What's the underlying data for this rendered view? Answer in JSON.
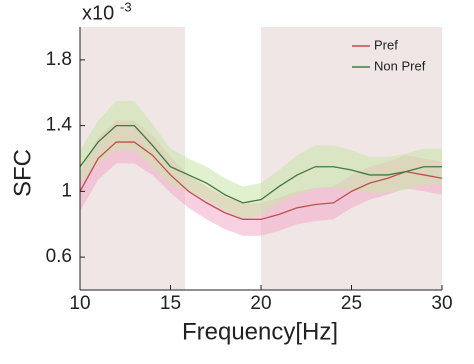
{
  "chart_data": {
    "type": "line",
    "x_label": "Frequency[Hz]",
    "y_label": "SFC",
    "y_scale_label": {
      "base": "x10",
      "exponent": "-3"
    },
    "x": [
      10,
      11,
      12,
      13,
      14,
      15,
      16,
      17,
      18,
      19,
      20,
      21,
      22,
      23,
      24,
      25,
      26,
      27,
      28,
      29,
      30
    ],
    "series": [
      {
        "name": "Pref",
        "color": "#c0504d",
        "band_color": "#f2a9c9",
        "values": [
          1.0,
          1.2,
          1.3,
          1.3,
          1.22,
          1.1,
          1.0,
          0.93,
          0.87,
          0.83,
          0.83,
          0.86,
          0.9,
          0.92,
          0.93,
          1.0,
          1.05,
          1.08,
          1.12,
          1.1,
          1.08
        ],
        "error": [
          0.12,
          0.13,
          0.13,
          0.13,
          0.12,
          0.11,
          0.1,
          0.1,
          0.1,
          0.1,
          0.1,
          0.1,
          0.1,
          0.1,
          0.1,
          0.1,
          0.1,
          0.1,
          0.1,
          0.1,
          0.1
        ]
      },
      {
        "name": "Non Pref",
        "color": "#3f7a3f",
        "band_color": "#c9e3a8",
        "values": [
          1.15,
          1.3,
          1.4,
          1.4,
          1.28,
          1.15,
          1.1,
          1.05,
          0.98,
          0.93,
          0.95,
          1.03,
          1.1,
          1.15,
          1.15,
          1.13,
          1.1,
          1.1,
          1.12,
          1.15,
          1.15
        ],
        "error": [
          0.1,
          0.13,
          0.15,
          0.15,
          0.13,
          0.11,
          0.1,
          0.1,
          0.1,
          0.1,
          0.1,
          0.1,
          0.12,
          0.13,
          0.13,
          0.12,
          0.11,
          0.11,
          0.11,
          0.11,
          0.11
        ]
      }
    ],
    "shaded_regions": [
      [
        10,
        15.8
      ],
      [
        20,
        30
      ]
    ],
    "shaded_color": "#f0e6e6",
    "xlim": [
      10,
      30
    ],
    "xticks": [
      10,
      15,
      20,
      25,
      30
    ],
    "ylim": [
      0.4,
      2.0
    ],
    "yticks": [
      0.6,
      1,
      1.4,
      1.8
    ],
    "legend": "upper right"
  }
}
